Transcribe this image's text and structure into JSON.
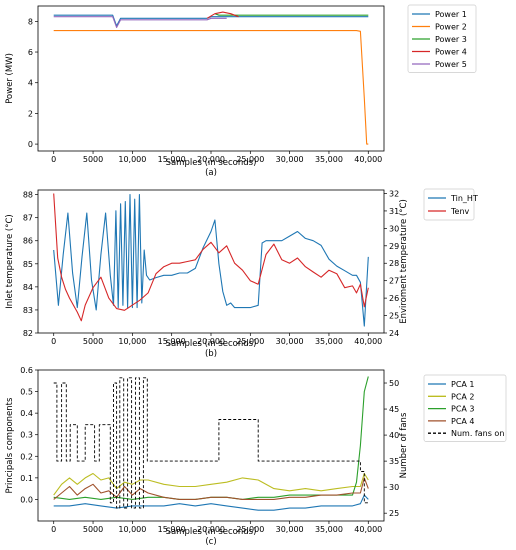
{
  "chart_data": [
    {
      "type": "line",
      "caption": "(a)",
      "xlabel": "Samples (in seconds)",
      "ylabel": "Power (MW)",
      "xlim": [
        -2000,
        42000
      ],
      "ylim": [
        -0.45,
        9.0
      ],
      "xticks": [
        0,
        5000,
        10000,
        15000,
        20000,
        25000,
        30000,
        35000,
        40000
      ],
      "xtick_labels": [
        "0",
        "5000",
        "10,000",
        "15,000",
        "20,000",
        "25,000",
        "30,000",
        "35,000",
        "40,000"
      ],
      "yticks": [
        0,
        2,
        4,
        6,
        8
      ],
      "grid": false,
      "legend_placement": "outside-right-top",
      "series": [
        {
          "name": "Power 1",
          "color": "#1f77b4",
          "x": [
            0,
            7500,
            8000,
            8500,
            19500,
            20000,
            40000
          ],
          "y": [
            8.4,
            8.4,
            7.7,
            8.2,
            8.2,
            8.3,
            8.3
          ]
        },
        {
          "name": "Power 2",
          "color": "#ff7f0e",
          "x": [
            0,
            38500,
            39000,
            39500,
            39800,
            40000
          ],
          "y": [
            7.4,
            7.4,
            7.35,
            3.0,
            0.0,
            0.0
          ]
        },
        {
          "name": "Power 3",
          "color": "#2ca02c",
          "x": [
            20500,
            21000,
            25000,
            30000,
            35000,
            40000
          ],
          "y": [
            8.5,
            8.4,
            8.4,
            8.4,
            8.4,
            8.4
          ]
        },
        {
          "name": "Power 4",
          "color": "#d62728",
          "x": [
            19500,
            20500,
            21500,
            22500,
            23500
          ],
          "y": [
            8.2,
            8.5,
            8.6,
            8.5,
            8.3
          ]
        },
        {
          "name": "Power 5",
          "color": "#9467bd",
          "x": [
            0,
            7500,
            8000,
            8500,
            19500,
            20000,
            22000
          ],
          "y": [
            8.3,
            8.3,
            7.6,
            8.1,
            8.1,
            8.2,
            8.2
          ]
        }
      ]
    },
    {
      "type": "line",
      "caption": "(b)",
      "xlabel": "Samples (in seconds)",
      "ylabel": "Inlet temperature (°C)",
      "y2label": "Enviroment temperature (°C)",
      "xlim": [
        -2000,
        42000
      ],
      "ylim": [
        82.0,
        88.2
      ],
      "y2lim": [
        24.0,
        32.2
      ],
      "xticks": [
        0,
        5000,
        10000,
        15000,
        20000,
        25000,
        30000,
        35000,
        40000
      ],
      "xtick_labels": [
        "0",
        "5000",
        "10,000",
        "15,000",
        "20,000",
        "25,000",
        "30,000",
        "35,000",
        "40,000"
      ],
      "yticks": [
        82,
        83,
        84,
        85,
        86,
        87,
        88
      ],
      "y2ticks": [
        24,
        25,
        26,
        27,
        28,
        29,
        30,
        31,
        32
      ],
      "grid": false,
      "legend_placement": "outside-right-top",
      "series": [
        {
          "name": "Tin_HT",
          "color": "#1f77b4",
          "axis": "left",
          "x": [
            0,
            600,
            1200,
            1800,
            2400,
            3000,
            3600,
            4200,
            4800,
            5400,
            6000,
            6600,
            7200,
            7600,
            7900,
            8200,
            8500,
            8800,
            9100,
            9400,
            9700,
            10000,
            10300,
            10600,
            10900,
            11200,
            11500,
            11800,
            12200,
            13000,
            14000,
            15000,
            16000,
            17000,
            18000,
            19000,
            20000,
            20500,
            21000,
            21500,
            22000,
            22500,
            23000,
            24000,
            25000,
            26000,
            26500,
            27000,
            28000,
            29000,
            30000,
            31000,
            32000,
            33000,
            34000,
            35000,
            36000,
            37000,
            38000,
            38500,
            39000,
            39500,
            40000
          ],
          "y": [
            85.6,
            83.2,
            85.4,
            87.2,
            84.6,
            83.1,
            85.3,
            87.2,
            84.3,
            83.0,
            85.4,
            87.2,
            84.5,
            83.2,
            87.3,
            83.1,
            87.6,
            83.2,
            87.7,
            83.1,
            88.0,
            83.1,
            87.8,
            83.1,
            88.0,
            83.3,
            85.6,
            84.5,
            84.3,
            84.4,
            84.5,
            84.5,
            84.6,
            84.6,
            84.8,
            85.7,
            86.4,
            86.9,
            85.0,
            83.8,
            83.2,
            83.3,
            83.1,
            83.1,
            83.1,
            83.2,
            85.9,
            86.0,
            86.0,
            86.0,
            86.2,
            86.4,
            86.1,
            86.0,
            85.8,
            85.2,
            84.9,
            84.7,
            84.5,
            84.5,
            84.2,
            82.3,
            85.3
          ]
        },
        {
          "name": "Tenv",
          "color": "#d62728",
          "axis": "right",
          "x": [
            0,
            500,
            1000,
            1500,
            2000,
            2500,
            3000,
            3500,
            4000,
            5000,
            6000,
            7000,
            8000,
            9000,
            10000,
            11000,
            12000,
            13000,
            14000,
            15000,
            16000,
            17000,
            18000,
            19000,
            20000,
            21000,
            22000,
            23000,
            24000,
            25000,
            26000,
            27000,
            28000,
            29000,
            30000,
            31000,
            32000,
            33000,
            34000,
            35000,
            36000,
            37000,
            38000,
            38500,
            39000,
            39500,
            40000
          ],
          "y": [
            32.0,
            28.3,
            27.2,
            26.5,
            26.0,
            25.6,
            25.2,
            24.7,
            25.6,
            26.6,
            27.2,
            26.0,
            25.4,
            25.3,
            25.6,
            25.9,
            26.3,
            27.4,
            27.8,
            28.0,
            28.0,
            28.1,
            28.2,
            28.8,
            29.2,
            28.6,
            29.0,
            28.0,
            27.6,
            27.0,
            26.8,
            28.5,
            29.1,
            28.2,
            28.0,
            28.3,
            27.8,
            27.5,
            27.2,
            27.6,
            27.4,
            26.6,
            26.7,
            26.3,
            26.8,
            25.5,
            26.6
          ]
        }
      ]
    },
    {
      "type": "line",
      "caption": "(c)",
      "xlabel": "Samples (in seconds)",
      "ylabel": "Principals components",
      "y2label": "Number of fans",
      "xlim": [
        -2000,
        42000
      ],
      "ylim": [
        -0.1,
        0.6
      ],
      "y2lim": [
        23.5,
        52.5
      ],
      "xticks": [
        0,
        5000,
        10000,
        15000,
        20000,
        25000,
        30000,
        35000,
        40000
      ],
      "xtick_labels": [
        "0",
        "5000",
        "10,000",
        "15,000",
        "20,000",
        "25,000",
        "30,000",
        "35,000",
        "40,000"
      ],
      "yticks": [
        0.0,
        0.1,
        0.2,
        0.3,
        0.4,
        0.5,
        0.6
      ],
      "y2ticks": [
        25,
        30,
        35,
        40,
        45,
        50
      ],
      "grid": false,
      "legend_placement": "outside-right-top",
      "series": [
        {
          "name": "PCA 1",
          "color": "#1f77b4",
          "axis": "left",
          "x": [
            0,
            2000,
            4000,
            6000,
            8000,
            10000,
            12000,
            14000,
            16000,
            18000,
            20000,
            22000,
            24000,
            26000,
            28000,
            30000,
            32000,
            34000,
            36000,
            38000,
            39000,
            39500,
            40000
          ],
          "y": [
            -0.03,
            -0.03,
            -0.02,
            -0.03,
            -0.04,
            -0.03,
            -0.03,
            -0.03,
            -0.02,
            -0.03,
            -0.02,
            -0.03,
            -0.04,
            -0.05,
            -0.05,
            -0.04,
            -0.04,
            -0.03,
            -0.03,
            -0.03,
            -0.02,
            0.02,
            0.0
          ]
        },
        {
          "name": "PCA 2",
          "color": "#bcbd22",
          "axis": "left",
          "x": [
            0,
            1000,
            2000,
            3000,
            4000,
            5000,
            6000,
            7000,
            8000,
            9000,
            10000,
            11000,
            12000,
            14000,
            16000,
            18000,
            20000,
            22000,
            24000,
            26000,
            28000,
            30000,
            32000,
            34000,
            36000,
            38000,
            39000,
            39500,
            40000
          ],
          "y": [
            0.02,
            0.07,
            0.1,
            0.07,
            0.1,
            0.12,
            0.09,
            0.1,
            0.05,
            0.08,
            0.07,
            0.09,
            0.09,
            0.07,
            0.06,
            0.06,
            0.07,
            0.08,
            0.1,
            0.09,
            0.05,
            0.04,
            0.05,
            0.04,
            0.05,
            0.06,
            0.06,
            0.12,
            0.09
          ]
        },
        {
          "name": "PCA 3",
          "color": "#2ca02c",
          "axis": "left",
          "x": [
            0,
            2000,
            4000,
            6000,
            8000,
            10000,
            12000,
            14000,
            16000,
            18000,
            20000,
            22000,
            24000,
            26000,
            28000,
            30000,
            32000,
            34000,
            36000,
            38000,
            38500,
            39000,
            39500,
            40000
          ],
          "y": [
            0.01,
            0.0,
            0.01,
            0.0,
            0.01,
            0.0,
            0.01,
            0.01,
            0.0,
            0.0,
            0.01,
            0.01,
            0.0,
            0.01,
            0.01,
            0.02,
            0.02,
            0.02,
            0.02,
            0.02,
            0.08,
            0.25,
            0.5,
            0.57
          ]
        },
        {
          "name": "PCA 4",
          "color": "#a0522d",
          "axis": "left",
          "x": [
            0,
            1000,
            2000,
            3000,
            4000,
            5000,
            6000,
            7000,
            8000,
            9000,
            10000,
            11000,
            12000,
            14000,
            16000,
            18000,
            20000,
            22000,
            24000,
            26000,
            28000,
            30000,
            32000,
            34000,
            36000,
            38000,
            39000,
            39500,
            40000
          ],
          "y": [
            0.0,
            0.03,
            0.06,
            0.02,
            0.05,
            0.07,
            0.03,
            0.04,
            0.01,
            0.06,
            0.02,
            0.05,
            0.03,
            0.01,
            0.0,
            0.0,
            0.01,
            0.01,
            0.0,
            0.0,
            0.0,
            0.01,
            0.01,
            0.02,
            0.02,
            0.03,
            0.03,
            0.1,
            0.05
          ]
        },
        {
          "name": "Num. fans on",
          "color": "#000000",
          "dashed": true,
          "axis": "right",
          "x": [
            0,
            400,
            400,
            1000,
            1000,
            1600,
            1600,
            2100,
            2100,
            3000,
            3000,
            4000,
            4000,
            5200,
            5200,
            5800,
            5800,
            7200,
            7200,
            7600,
            7600,
            8000,
            8000,
            8400,
            8400,
            8900,
            8900,
            9400,
            9400,
            9900,
            9900,
            10400,
            10400,
            10900,
            10900,
            11400,
            11400,
            11900,
            11900,
            12200,
            12200,
            21000,
            21000,
            26000,
            26000,
            38500,
            38500,
            39000,
            39000,
            39500,
            39500,
            40000
          ],
          "y": [
            50,
            50,
            35,
            35,
            50,
            50,
            35,
            35,
            42,
            42,
            35,
            35,
            42,
            42,
            35,
            35,
            42,
            42,
            27,
            27,
            50,
            50,
            26,
            26,
            51,
            51,
            26,
            26,
            51,
            51,
            26,
            26,
            51,
            51,
            26,
            26,
            51,
            51,
            35,
            35,
            35,
            35,
            43,
            43,
            35,
            35,
            35,
            35,
            33,
            33,
            27,
            27
          ]
        }
      ]
    }
  ]
}
